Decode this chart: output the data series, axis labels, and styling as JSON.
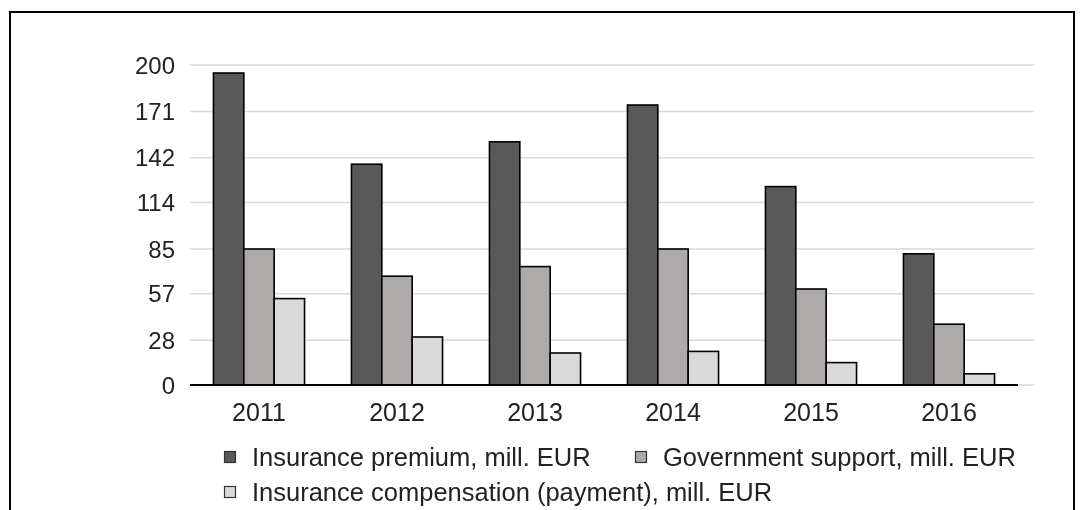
{
  "chart_data": {
    "type": "bar",
    "categories": [
      "2011",
      "2012",
      "2013",
      "2014",
      "2015",
      "2016"
    ],
    "series": [
      {
        "name": "Insurance premium, mill. EUR",
        "color": "#595959",
        "values": [
          195,
          138,
          152,
          175,
          124,
          82
        ]
      },
      {
        "name": "Government support, mill. EUR",
        "color": "#aeaaaa",
        "values": [
          85,
          68,
          74,
          85,
          60,
          38
        ]
      },
      {
        "name": "Insurance compensation (payment), mill. EUR",
        "color": "#d9d9d9",
        "values": [
          54,
          30,
          20,
          21,
          14,
          7
        ]
      }
    ],
    "ylim": [
      0,
      200
    ],
    "yticks": [
      0,
      28,
      57,
      85,
      114,
      142,
      171,
      200
    ],
    "grid": "y",
    "legend": "bottom"
  }
}
